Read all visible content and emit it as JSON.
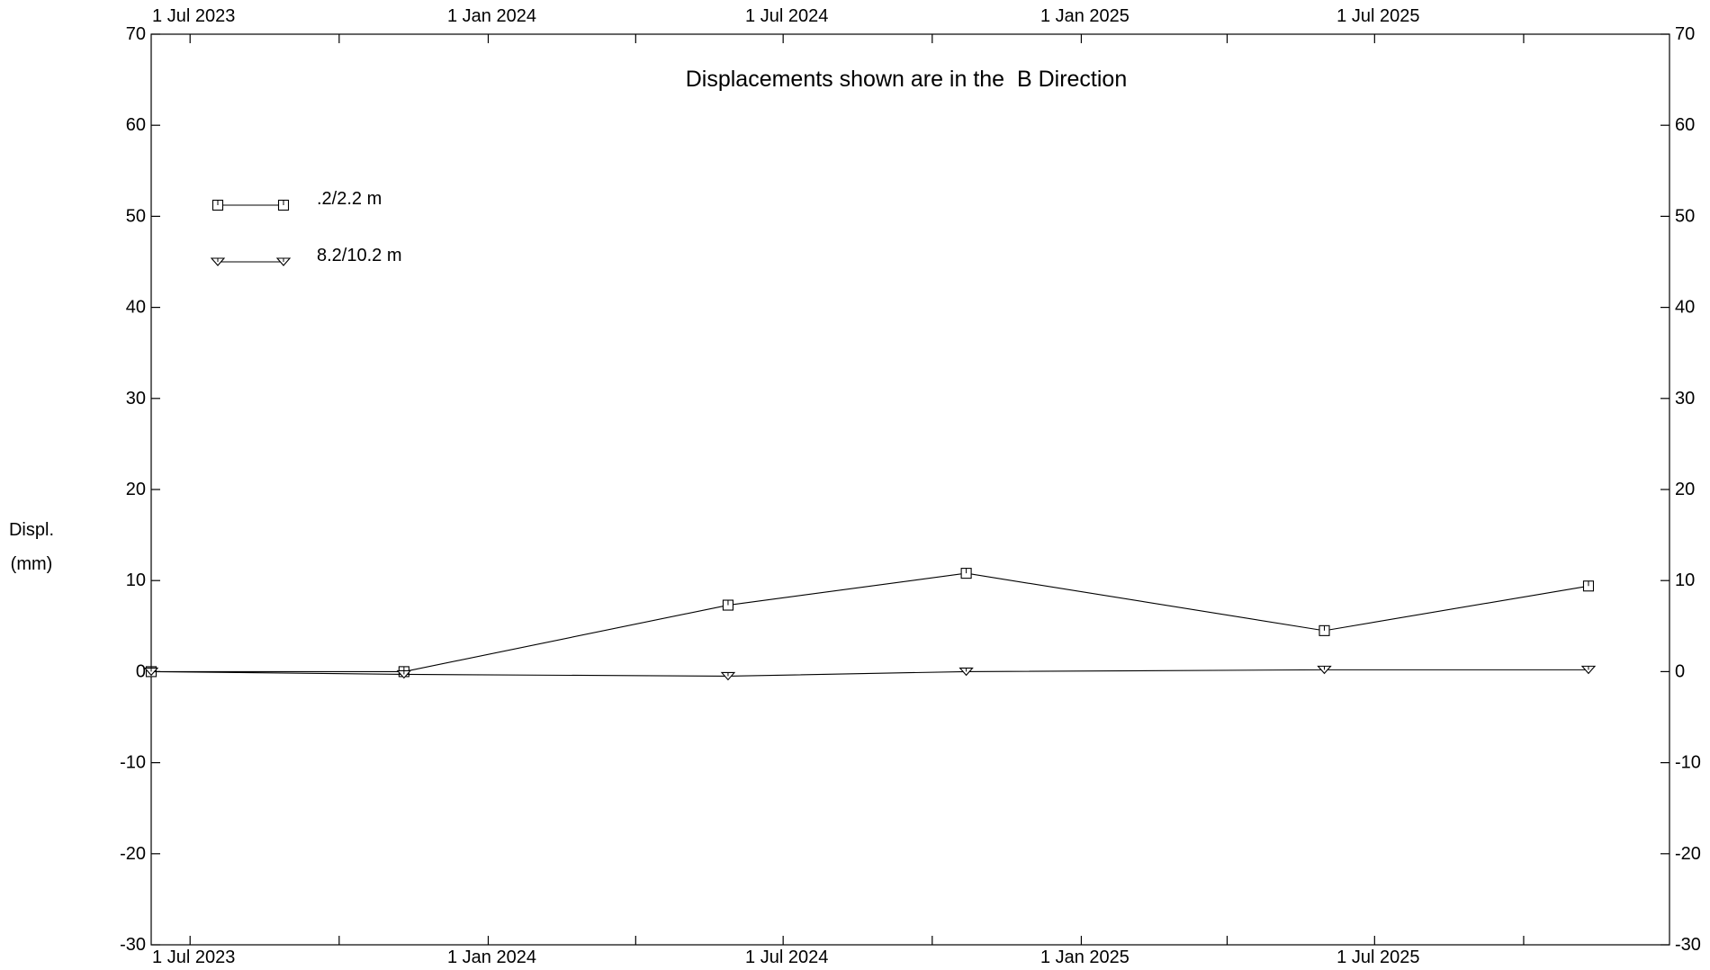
{
  "chart_data": {
    "type": "line",
    "title": "Displacements shown are in the  B Direction",
    "ylabel": [
      "Displ.",
      "(mm)"
    ],
    "ylim": [
      -30,
      70
    ],
    "yticks": [
      70,
      60,
      50,
      40,
      30,
      20,
      10,
      0,
      -10,
      -20,
      -30
    ],
    "x_axis_start": "2023-06-07",
    "x_axis_end": "2025-12-30",
    "x_tick_labels": [
      {
        "date": "2023-07-01",
        "label": "1 Jul 2023"
      },
      {
        "date": "2024-01-01",
        "label": "1 Jan 2024"
      },
      {
        "date": "2024-07-01",
        "label": "1 Jul 2024"
      },
      {
        "date": "2025-01-01",
        "label": "1 Jan 2025"
      },
      {
        "date": "2025-07-01",
        "label": "1 Jul 2025"
      }
    ],
    "x_minor_ticks": [
      "2023-10-01",
      "2024-04-01",
      "2024-10-01",
      "2025-04-01",
      "2025-10-01"
    ],
    "series": [
      {
        "name": ".2/2.2 m",
        "marker": "square",
        "x": [
          "2023-06-07",
          "2023-11-10",
          "2024-05-28",
          "2024-10-22",
          "2025-05-31",
          "2025-11-10"
        ],
        "values": [
          0,
          0,
          7.3,
          10.8,
          4.5,
          9.4
        ]
      },
      {
        "name": "8.2/10.2 m",
        "marker": "triangle-down",
        "x": [
          "2023-06-07",
          "2023-11-10",
          "2024-05-28",
          "2024-10-22",
          "2025-05-31",
          "2025-11-10"
        ],
        "values": [
          0,
          -0.3,
          -0.5,
          0,
          0.2,
          0.2
        ]
      }
    ],
    "legend_position": "top-left",
    "grid": false,
    "colors": {
      "line": "#000000",
      "background": "#ffffff"
    }
  }
}
